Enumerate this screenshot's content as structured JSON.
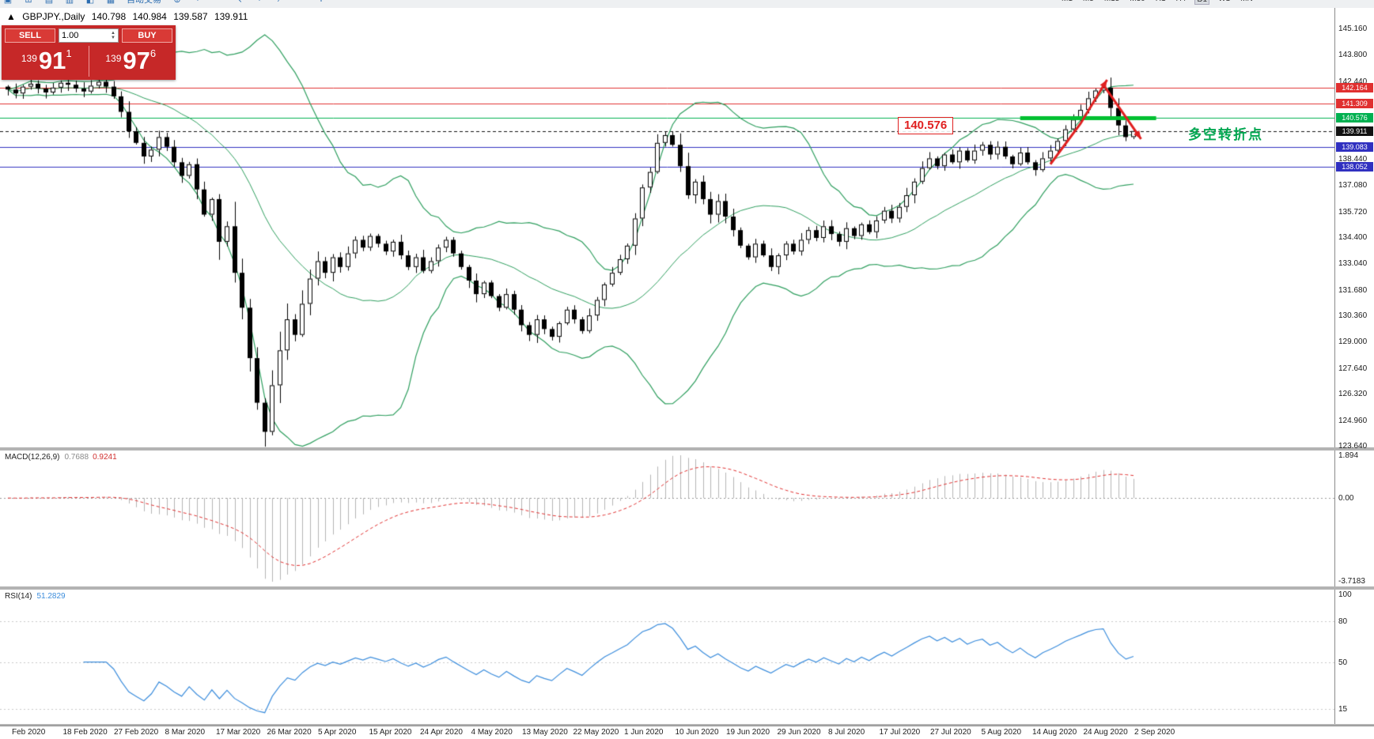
{
  "toolbar": {
    "icons": [
      {
        "name": "new-order-icon",
        "glyph": "▣"
      },
      {
        "name": "charts-grid-icon",
        "glyph": "⊞"
      },
      {
        "name": "market-watch-icon",
        "glyph": "▤"
      },
      {
        "name": "data-window-icon",
        "glyph": "▥"
      },
      {
        "name": "navigator-icon",
        "glyph": "◧"
      },
      {
        "name": "terminal-icon",
        "glyph": "▦"
      },
      {
        "name": "auto-trading-button",
        "glyph": "自动交易"
      },
      {
        "name": "new-chart-icon",
        "glyph": "⊕"
      },
      {
        "name": "zoom-in-icon",
        "glyph": "+"
      },
      {
        "name": "zoom-out-icon",
        "glyph": "−"
      },
      {
        "name": "cursor-icon",
        "glyph": "↖"
      },
      {
        "name": "crosshair-icon",
        "glyph": "+"
      },
      {
        "name": "trendline-icon",
        "glyph": "∕"
      },
      {
        "name": "hline-icon",
        "glyph": "—"
      },
      {
        "name": "text-label-icon",
        "glyph": "T"
      }
    ],
    "timeframes": [
      "M1",
      "M5",
      "M15",
      "M30",
      "H1",
      "H4",
      "D1",
      "W1",
      "MN"
    ],
    "active_timeframe": "D1"
  },
  "chart": {
    "panel_toggle_glyph": "▲",
    "title": "GBPJPY.,Daily",
    "ohlc": {
      "open": "140.798",
      "high": "140.984",
      "low": "139.587",
      "close": "139.911"
    },
    "trade_panel": {
      "sell_label": "SELL",
      "buy_label": "BUY",
      "volume": "1.00",
      "spin_up": "▲",
      "spin_down": "▼",
      "bid": {
        "prefix": "139",
        "big": "91",
        "sup": "1"
      },
      "ask": {
        "prefix": "139",
        "big": "97",
        "sup": "6"
      }
    },
    "annotations": {
      "price_callout": "140.576",
      "cn_note": "多空转折点"
    }
  },
  "macd": {
    "label": "MACD(12,26,9)",
    "value_main": "0.7688",
    "value_signal": "0.9241",
    "axis": [
      "1.894",
      "0.00",
      "-3.7183"
    ]
  },
  "rsi": {
    "label": "RSI(14)",
    "value": "51.2829",
    "axis": [
      "100",
      "80",
      "50",
      "15"
    ]
  },
  "chart_data": {
    "type": "candlestick",
    "symbol": "GBPJPY",
    "timeframe": "Daily",
    "ylim": [
      123.3,
      146.0
    ],
    "x_labels": [
      "Feb 2020",
      "18 Feb 2020",
      "27 Feb 2020",
      "8 Mar 2020",
      "17 Mar 2020",
      "26 Mar 2020",
      "5 Apr 2020",
      "15 Apr 2020",
      "24 Apr 2020",
      "4 May 2020",
      "13 May 2020",
      "22 May 2020",
      "1 Jun 2020",
      "10 Jun 2020",
      "19 Jun 2020",
      "29 Jun 2020",
      "8 Jul 2020",
      "17 Jul 2020",
      "27 Jul 2020",
      "5 Aug 2020",
      "14 Aug 2020",
      "24 Aug 2020",
      "2 Sep 2020"
    ],
    "y_ticks": [
      {
        "label": "145.160",
        "price": 145.16
      },
      {
        "label": "143.800",
        "price": 143.8
      },
      {
        "label": "142.440",
        "price": 142.44
      },
      {
        "label": "138.440",
        "price": 138.44
      },
      {
        "label": "137.080",
        "price": 137.08
      },
      {
        "label": "135.720",
        "price": 135.72
      },
      {
        "label": "134.400",
        "price": 134.4
      },
      {
        "label": "133.040",
        "price": 133.04
      },
      {
        "label": "131.680",
        "price": 131.68
      },
      {
        "label": "130.360",
        "price": 130.36
      },
      {
        "label": "129.000",
        "price": 129.0
      },
      {
        "label": "127.640",
        "price": 127.64
      },
      {
        "label": "126.320",
        "price": 126.32
      },
      {
        "label": "124.960",
        "price": 124.96
      },
      {
        "label": "123.640",
        "price": 123.64
      }
    ],
    "levels": [
      {
        "label": "142.164",
        "price": 142.164,
        "color": "#e03030",
        "style": "solid"
      },
      {
        "label": "141.309",
        "price": 141.309,
        "color": "#e03030",
        "style": "solid"
      },
      {
        "label": "140.576",
        "price": 140.576,
        "color": "#00b050",
        "style": "solid"
      },
      {
        "label": "139.911",
        "price": 139.911,
        "color": "#111111",
        "style": "dashed"
      },
      {
        "label": "139.083",
        "price": 139.083,
        "color": "#3030c0",
        "style": "solid"
      },
      {
        "label": "138.052",
        "price": 138.052,
        "color": "#3030c0",
        "style": "solid"
      }
    ],
    "closes": [
      142.05,
      141.85,
      142.2,
      142.35,
      142.1,
      141.9,
      142.15,
      142.4,
      142.3,
      142.1,
      141.95,
      142.25,
      142.45,
      142.2,
      141.7,
      140.9,
      139.9,
      139.3,
      138.6,
      138.95,
      139.6,
      139.1,
      138.3,
      137.6,
      138.2,
      136.9,
      135.6,
      136.4,
      134.2,
      135.0,
      132.6,
      130.8,
      128.2,
      125.9,
      124.4,
      126.8,
      128.6,
      130.2,
      129.4,
      131.0,
      132.3,
      133.2,
      132.6,
      133.4,
      132.9,
      133.6,
      134.3,
      133.9,
      134.5,
      134.1,
      133.7,
      134.2,
      133.5,
      132.9,
      133.4,
      132.7,
      133.2,
      133.9,
      134.3,
      133.6,
      132.9,
      132.2,
      131.5,
      132.1,
      131.4,
      130.8,
      131.5,
      130.7,
      129.9,
      129.4,
      130.2,
      129.7,
      129.3,
      130.0,
      130.7,
      130.2,
      129.6,
      130.4,
      131.2,
      132.0,
      132.6,
      133.3,
      134.0,
      135.4,
      137.0,
      137.8,
      139.3,
      139.7,
      139.2,
      138.1,
      136.6,
      137.3,
      136.4,
      135.6,
      136.3,
      135.5,
      134.8,
      134.0,
      133.4,
      134.1,
      133.5,
      132.9,
      133.5,
      134.1,
      133.7,
      134.3,
      134.8,
      134.4,
      135.0,
      134.6,
      134.2,
      134.9,
      134.5,
      135.1,
      134.7,
      135.3,
      135.8,
      135.4,
      136.0,
      136.6,
      137.3,
      138.0,
      138.5,
      138.1,
      138.7,
      138.3,
      138.9,
      138.4,
      138.9,
      139.2,
      138.7,
      139.1,
      138.6,
      138.2,
      138.8,
      138.3,
      137.9,
      138.5,
      138.9,
      139.4,
      140.0,
      140.5,
      141.0,
      141.6,
      142.0,
      142.15,
      141.1,
      140.2,
      139.6,
      139.91
    ],
    "annotations": {
      "bold_support": {
        "price": 140.576,
        "from_index": 134,
        "to_index": 152
      },
      "up_arrow": [
        [
          138,
          138.2
        ],
        [
          142,
          140.3
        ],
        [
          145.5,
          142.55
        ]
      ],
      "down_arrow": [
        [
          145,
          142.3
        ],
        [
          150,
          139.5
        ]
      ]
    },
    "indicators": {
      "bollinger": {
        "period": 20,
        "deviation": 2,
        "color": "#2e9e5e"
      },
      "macd": {
        "fast": 12,
        "slow": 26,
        "signal": 9,
        "current_main": 0.7688,
        "current_signal": 0.9241
      },
      "rsi": {
        "period": 14,
        "current": 51.2829,
        "levels": [
          80,
          50,
          15
        ]
      }
    }
  }
}
